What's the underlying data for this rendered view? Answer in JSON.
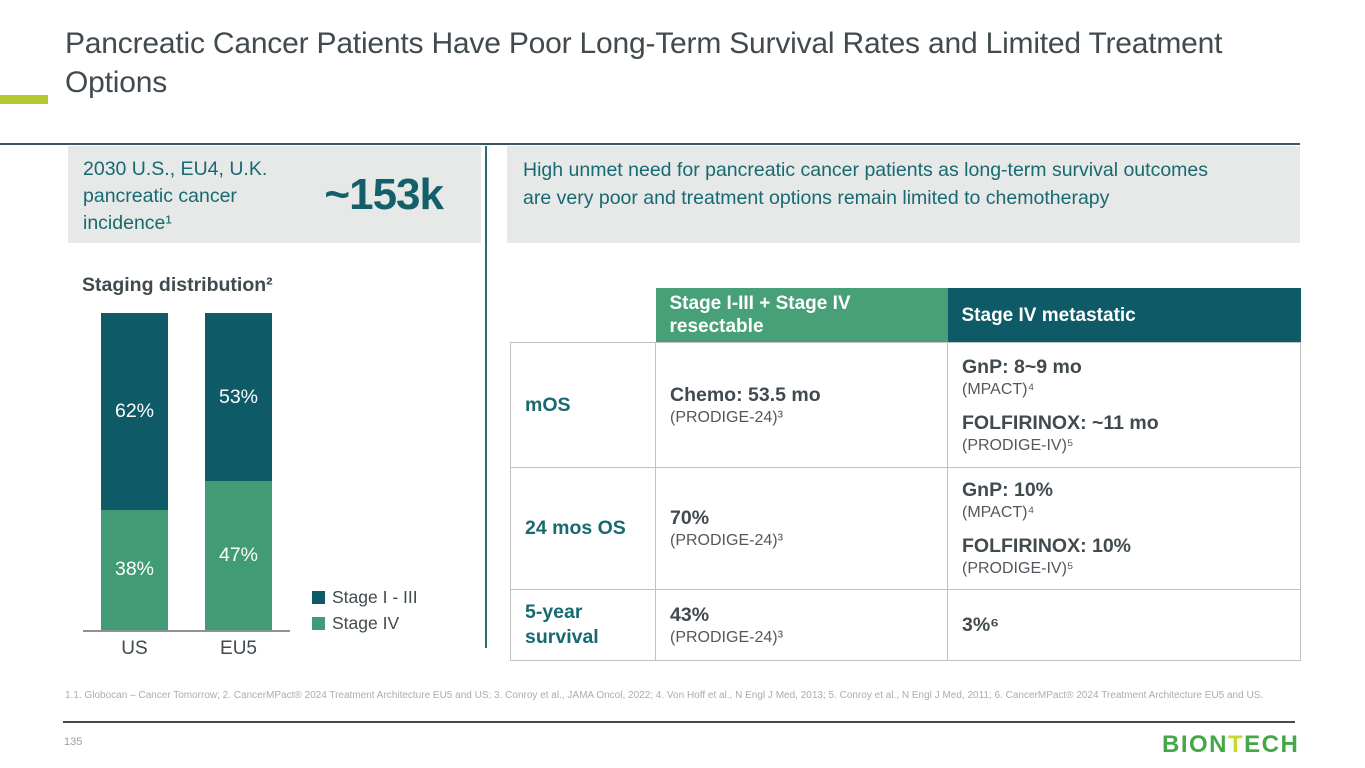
{
  "slide": {
    "title": "Pancreatic Cancer Patients Have Poor Long-Term Survival Rates and Limited Treatment Options",
    "page_number": "135",
    "footnote": "1.1. Globocan – Cancer Tomorrow;  2. CancerMPact® 2024 Treatment Architecture EU5 and US;  3. Conroy et al., JAMA Oncol, 2022; 4. Von Hoff et al., N Engl J Med, 2013; 5. Conroy et al., N Engl J Med, 2011; 6. CancerMPact® 2024 Treatment Architecture EU5 and US.",
    "logo": {
      "part1": "BION",
      "part_t": "T",
      "part2": "ECH"
    }
  },
  "incidence_box": {
    "label": "2030 U.S., EU4, U.K. pancreatic cancer incidence¹",
    "value": "~153k"
  },
  "unmet_need_box": {
    "text": "High unmet need for pancreatic cancer patients as long-term survival outcomes are very poor and treatment options remain limited to chemotherapy"
  },
  "chart_data": {
    "type": "bar",
    "stacked": true,
    "title": "Staging distribution²",
    "categories": [
      "US",
      "EU5"
    ],
    "series": [
      {
        "name": "Stage I - III",
        "values": [
          62,
          53
        ],
        "color": "#0E5A66",
        "stack_position": "top"
      },
      {
        "name": "Stage IV",
        "values": [
          38,
          47
        ],
        "color": "#419B74",
        "stack_position": "bottom"
      }
    ],
    "value_suffix": "%",
    "ylim": [
      0,
      100
    ],
    "grid": false,
    "legend_position": "right"
  },
  "table": {
    "header": [
      "",
      "Stage I-III + Stage IV resectable",
      "Stage IV metastatic"
    ],
    "rows": [
      {
        "label": "mOS",
        "resectable": [
          {
            "main": "Chemo: 53.5 mo",
            "sub": "(PRODIGE-24)³"
          }
        ],
        "metastatic": [
          {
            "main": "GnP: 8~9 mo",
            "sub": "(MPACT)⁴"
          },
          {
            "main": "FOLFIRINOX: ~11 mo",
            "sub": "(PRODIGE-IV)⁵"
          }
        ]
      },
      {
        "label": "24 mos OS",
        "resectable": [
          {
            "main": "70%",
            "sub": "(PRODIGE-24)³"
          }
        ],
        "metastatic": [
          {
            "main": "GnP: 10%",
            "sub": "(MPACT)⁴"
          },
          {
            "main": "FOLFIRINOX: 10%",
            "sub": "(PRODIGE-IV)⁵"
          }
        ]
      },
      {
        "label": "5-year survival",
        "resectable": [
          {
            "main": "43%",
            "sub": "(PRODIGE-24)³"
          }
        ],
        "metastatic": [
          {
            "main": "3%⁶",
            "sub": ""
          }
        ]
      }
    ]
  },
  "colors": {
    "teal_dark": "#0E5A66",
    "green": "#47A078",
    "teal_text": "#166A70",
    "lime_accent": "#B3C92F",
    "title_gray": "#414A4E",
    "box_gray": "#E7E8E8",
    "footnote_gray": "#ACACAC",
    "logo_green": "#45A748",
    "logo_lime": "#C5D92E"
  }
}
